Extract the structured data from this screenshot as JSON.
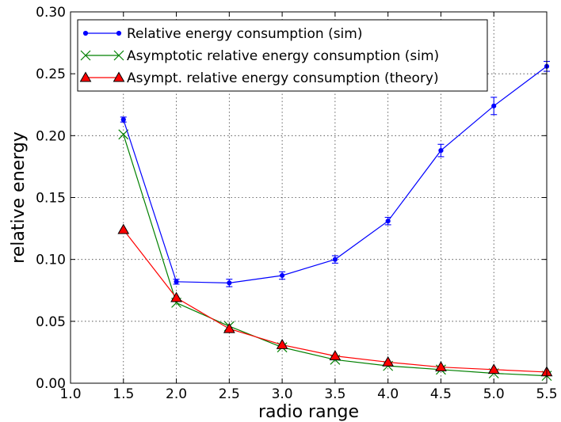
{
  "chart_data": {
    "type": "line",
    "title": "",
    "xlabel": "radio range",
    "ylabel": "relative energy",
    "xlim": [
      1.0,
      5.5
    ],
    "ylim": [
      0.0,
      0.3
    ],
    "x_ticks": [
      "1.0",
      "1.5",
      "2.0",
      "2.5",
      "3.0",
      "3.5",
      "4.0",
      "4.5",
      "5.0",
      "5.5"
    ],
    "y_ticks": [
      "0.00",
      "0.05",
      "0.10",
      "0.15",
      "0.20",
      "0.25",
      "0.30"
    ],
    "grid": true,
    "legend_position": "top-left",
    "x": [
      1.5,
      2.0,
      2.5,
      3.0,
      3.5,
      4.0,
      4.5,
      5.0,
      5.5
    ],
    "series": [
      {
        "name": "Relative energy consumption (sim)",
        "color": "#0000ff",
        "marker": "dot",
        "values": [
          0.213,
          0.082,
          0.081,
          0.087,
          0.1,
          0.131,
          0.188,
          0.224,
          0.256
        ],
        "errors": [
          0.002,
          0.002,
          0.003,
          0.003,
          0.003,
          0.003,
          0.005,
          0.007,
          0.004
        ]
      },
      {
        "name": "Asymptotic relative energy consumption (sim)",
        "color": "#008000",
        "marker": "x",
        "values": [
          0.201,
          0.065,
          0.046,
          0.029,
          0.019,
          0.014,
          0.011,
          0.008,
          0.006
        ]
      },
      {
        "name": "Asympt. relative energy consumption (theory)",
        "color": "#ff0000",
        "marker": "triangle",
        "values": [
          0.124,
          0.069,
          0.044,
          0.031,
          0.022,
          0.017,
          0.013,
          0.011,
          0.009
        ]
      }
    ]
  }
}
